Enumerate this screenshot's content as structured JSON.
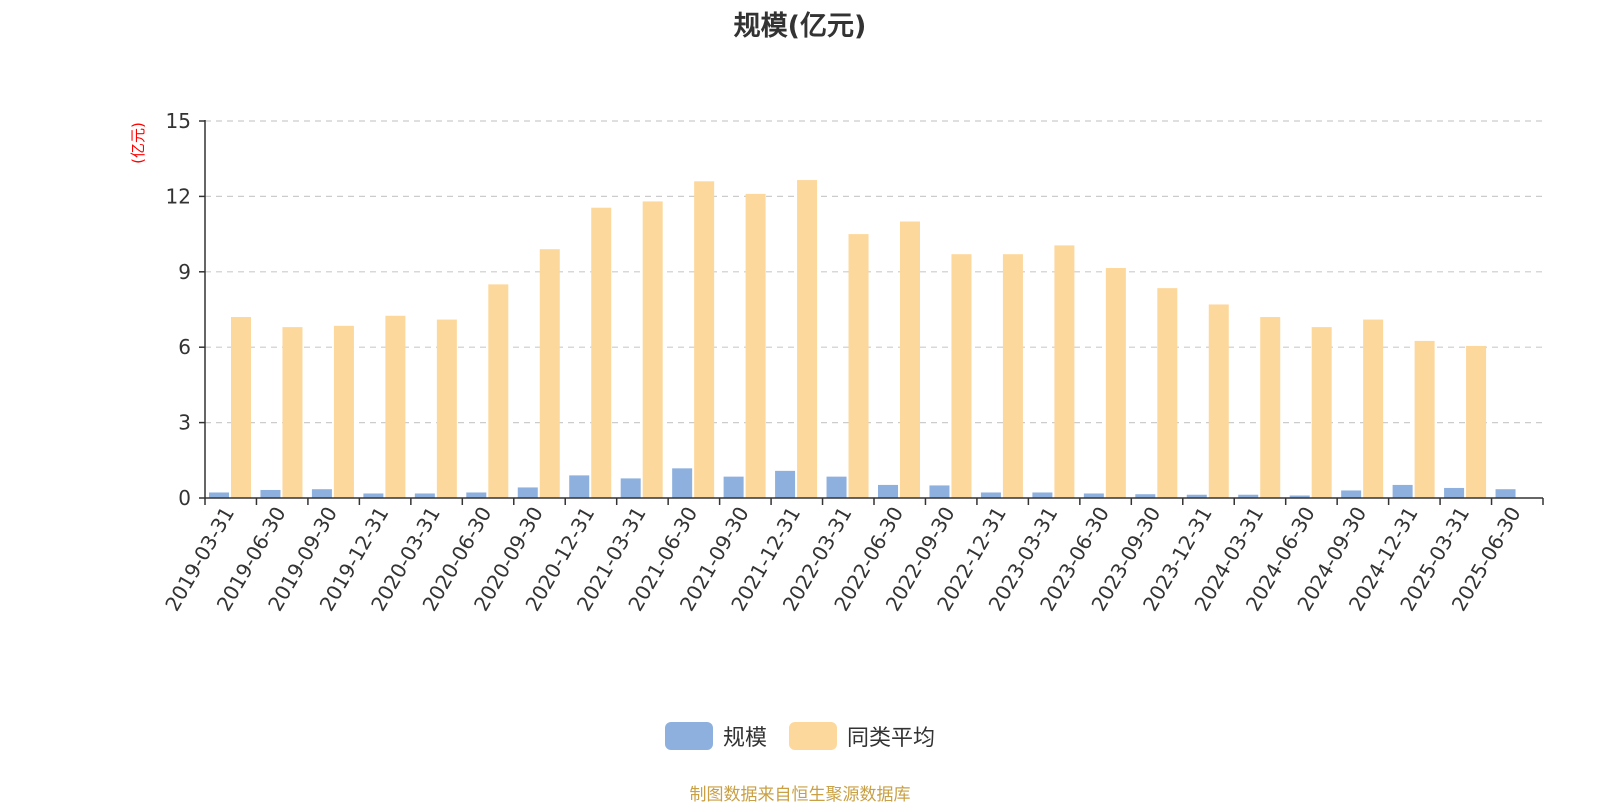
{
  "chart_data": {
    "type": "bar",
    "title": "规模(亿元)",
    "ylabel": "(亿元)",
    "xlabel": "",
    "ylim": [
      0,
      15
    ],
    "yticks": [
      0,
      3,
      6,
      9,
      12,
      15
    ],
    "grid": true,
    "legend_position": "bottom-center",
    "categories": [
      "2019-03-31",
      "2019-06-30",
      "2019-09-30",
      "2019-12-31",
      "2020-03-31",
      "2020-06-30",
      "2020-09-30",
      "2020-12-31",
      "2021-03-31",
      "2021-06-30",
      "2021-09-30",
      "2021-12-31",
      "2022-03-31",
      "2022-06-30",
      "2022-09-30",
      "2022-12-31",
      "2023-03-31",
      "2023-06-30",
      "2023-09-30",
      "2023-12-31",
      "2024-03-31",
      "2024-06-30",
      "2024-09-30",
      "2024-12-31",
      "2025-03-31",
      "2025-06-30"
    ],
    "series": [
      {
        "name": "规模",
        "color": "#8eb0de",
        "values": [
          0.22,
          0.32,
          0.35,
          0.18,
          0.18,
          0.22,
          0.42,
          0.9,
          0.78,
          1.18,
          0.85,
          1.08,
          0.85,
          0.52,
          0.5,
          0.22,
          0.22,
          0.18,
          0.15,
          0.13,
          0.13,
          0.1,
          0.3,
          0.52,
          0.4,
          0.35
        ]
      },
      {
        "name": "同类平均",
        "color": "#fdd89c",
        "values": [
          7.2,
          6.8,
          6.85,
          7.25,
          7.1,
          8.5,
          9.9,
          11.55,
          11.8,
          12.6,
          12.1,
          12.65,
          10.5,
          11.0,
          9.7,
          9.7,
          10.05,
          9.15,
          8.35,
          7.7,
          7.2,
          6.8,
          7.1,
          6.25,
          6.05,
          null
        ]
      }
    ]
  },
  "source_note": "制图数据来自恒生聚源数据库",
  "colors": {
    "axis": "#333333",
    "grid": "#cccccc",
    "ylabel": "#ff0000"
  }
}
